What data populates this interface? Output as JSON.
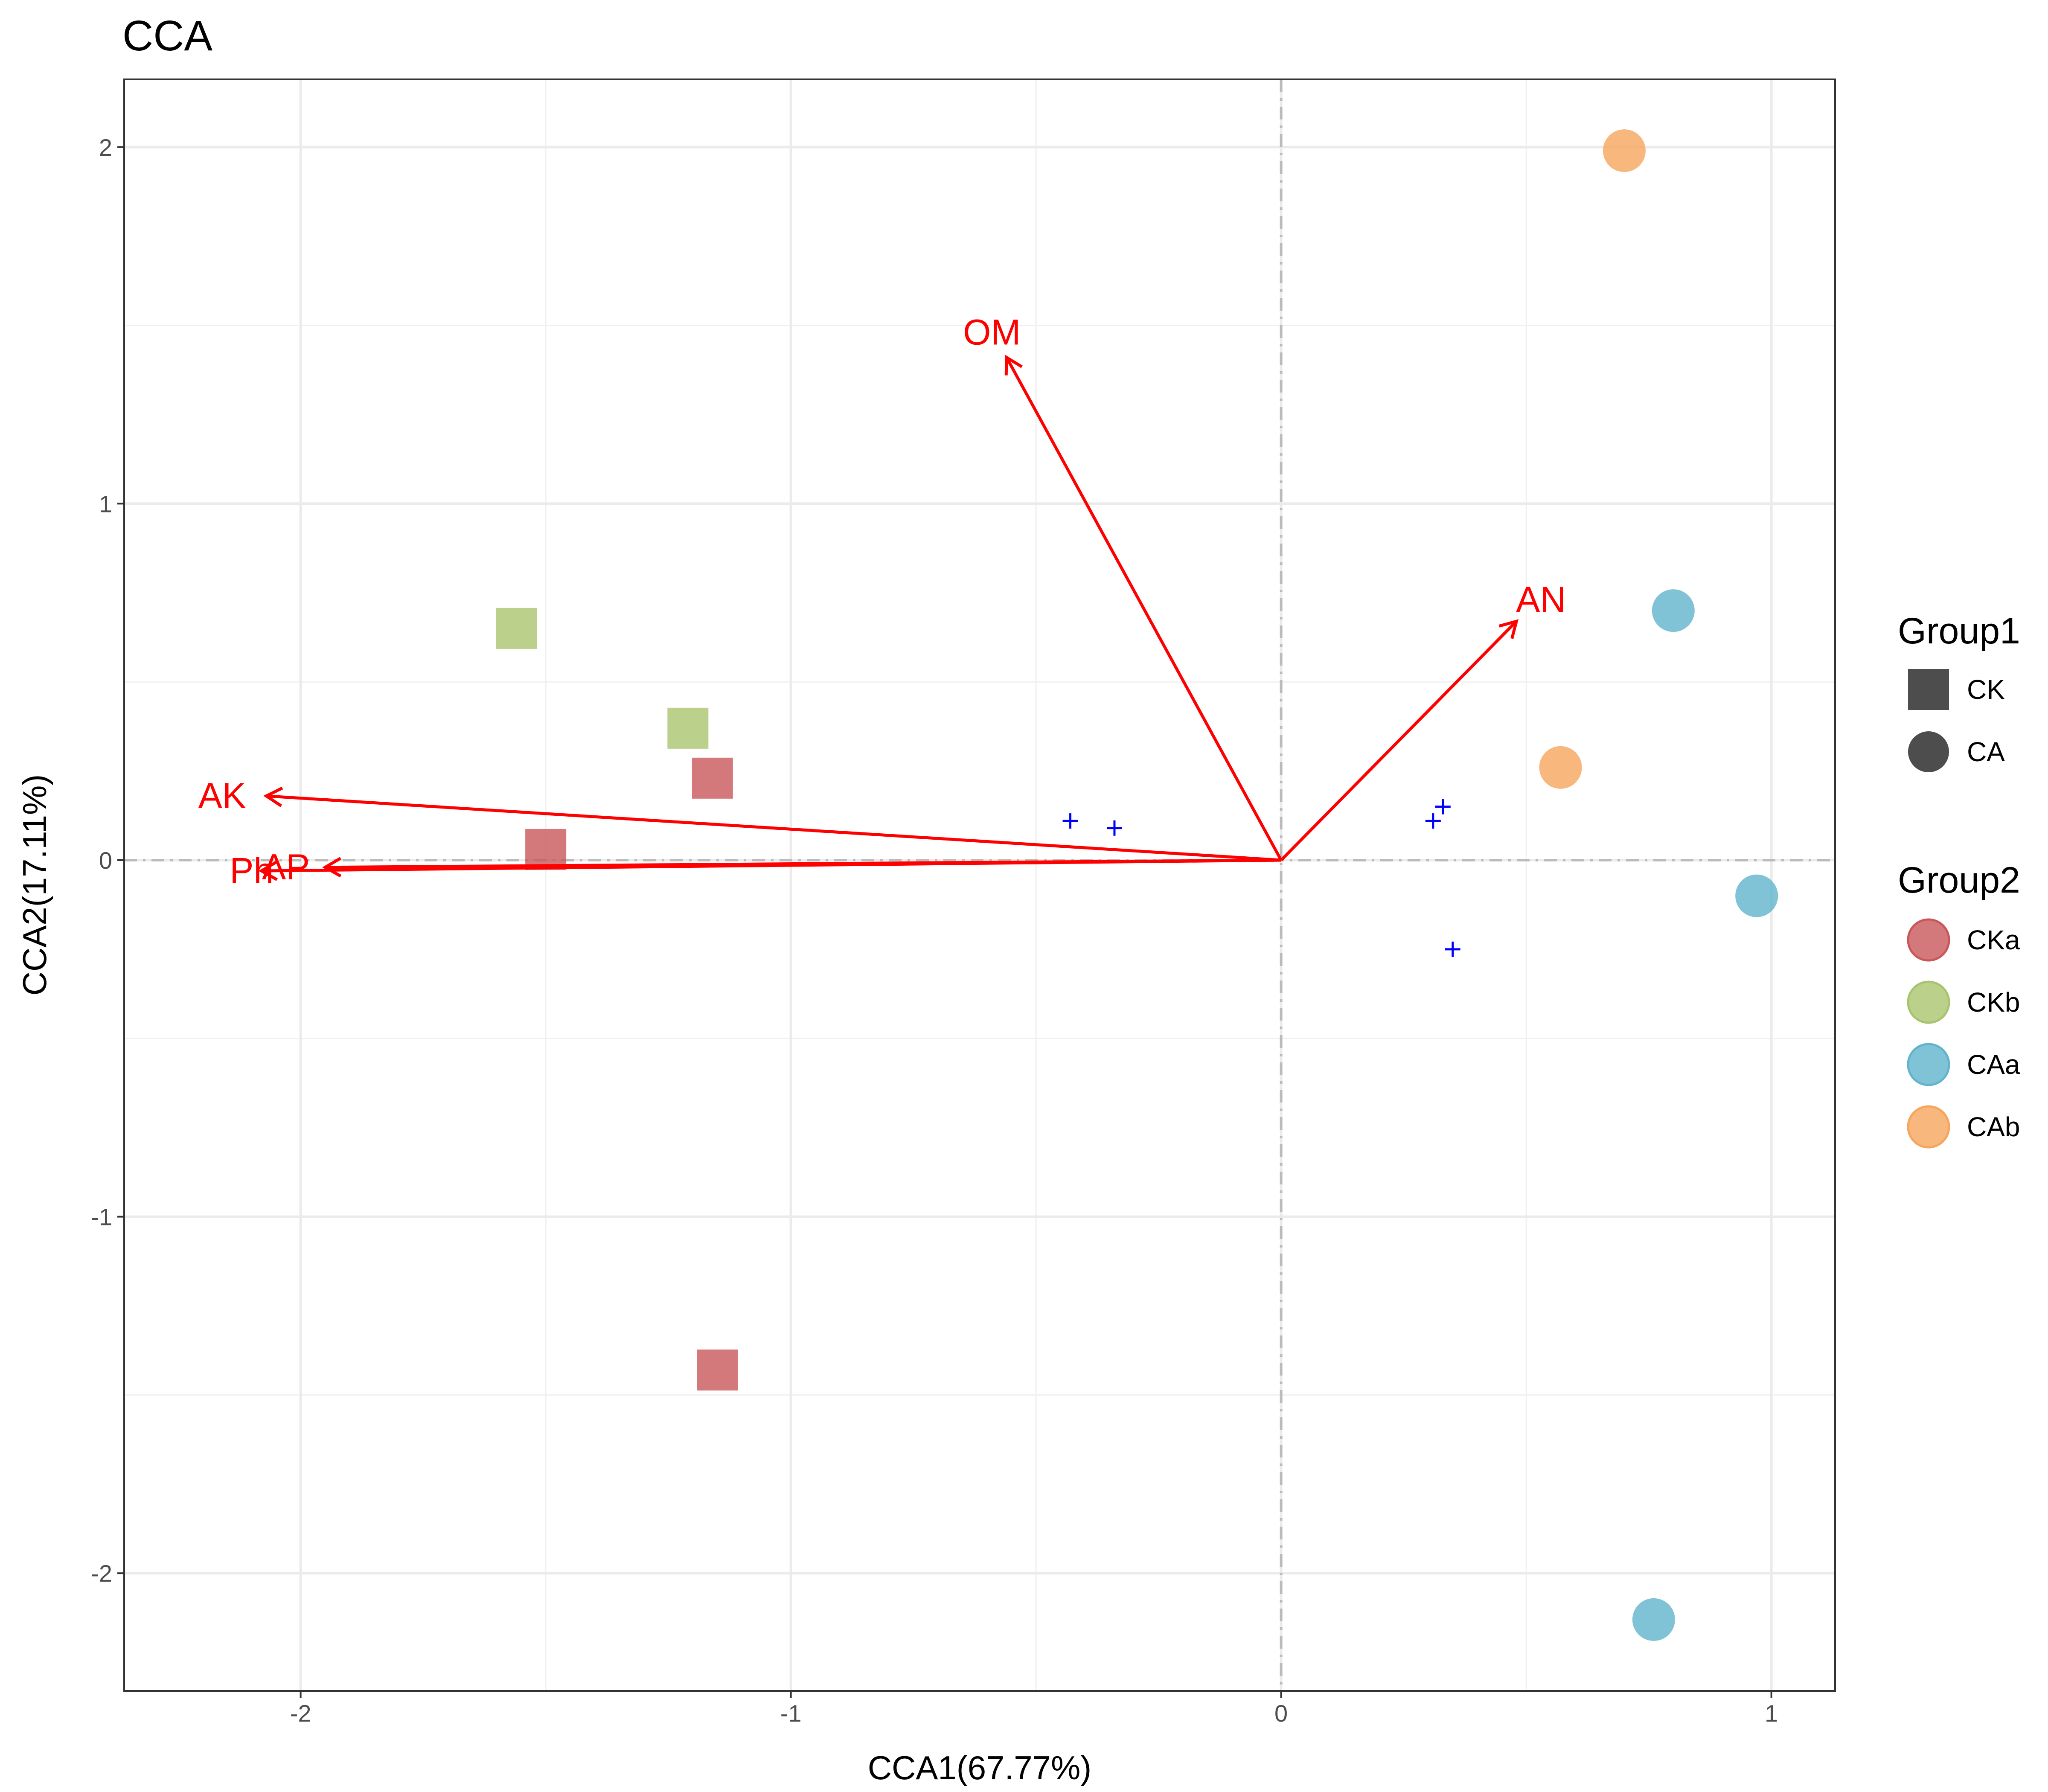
{
  "chart_data": {
    "type": "scatter",
    "title": "CCA",
    "xlabel": "CCA1(67.77%)",
    "ylabel": "CCA2(17.11%)",
    "xlim": [
      -2.36,
      1.13
    ],
    "ylim": [
      -2.33,
      2.19
    ],
    "xticks": [
      -2,
      -1,
      0,
      1
    ],
    "yticks": [
      -2,
      -1,
      0,
      1,
      2
    ],
    "xtick_labels": [
      "-2",
      "-1",
      "0",
      "1"
    ],
    "ytick_labels": [
      "-2",
      "-1",
      "0",
      "1",
      "2"
    ],
    "grid": true,
    "reference_lines": {
      "x": 0,
      "y": 0,
      "style": "dashed",
      "color": "#bbbbbb"
    },
    "points": [
      {
        "x": -1.16,
        "y": 0.23,
        "group1": "CK",
        "group2": "CKa"
      },
      {
        "x": -1.5,
        "y": 0.03,
        "group1": "CK",
        "group2": "CKa"
      },
      {
        "x": -1.15,
        "y": -1.43,
        "group1": "CK",
        "group2": "CKa"
      },
      {
        "x": -1.56,
        "y": 0.65,
        "group1": "CK",
        "group2": "CKb"
      },
      {
        "x": -1.21,
        "y": 0.37,
        "group1": "CK",
        "group2": "CKb"
      },
      {
        "x": 0.8,
        "y": 0.7,
        "group1": "CA",
        "group2": "CAa"
      },
      {
        "x": 0.97,
        "y": -0.1,
        "group1": "CA",
        "group2": "CAa"
      },
      {
        "x": 0.76,
        "y": -2.13,
        "group1": "CA",
        "group2": "CAa"
      },
      {
        "x": 0.7,
        "y": 1.99,
        "group1": "CA",
        "group2": "CAb"
      },
      {
        "x": 0.57,
        "y": 0.26,
        "group1": "CA",
        "group2": "CAb"
      }
    ],
    "species_points": [
      {
        "x": -0.43,
        "y": 0.11
      },
      {
        "x": -0.34,
        "y": 0.09
      },
      {
        "x": 0.31,
        "y": 0.11
      },
      {
        "x": 0.33,
        "y": 0.15
      },
      {
        "x": 0.35,
        "y": -0.25
      }
    ],
    "species_color": "#0000ff",
    "arrows": [
      {
        "name": "OM",
        "x": -0.56,
        "y": 1.41,
        "label_x": -0.59,
        "label_y": 1.48
      },
      {
        "name": "AN",
        "x": 0.48,
        "y": 0.67,
        "label_x": 0.53,
        "label_y": 0.73
      },
      {
        "name": "AK",
        "x": -2.07,
        "y": 0.18,
        "label_x": -2.16,
        "label_y": 0.18
      },
      {
        "name": "Ph",
        "x": -2.08,
        "y": -0.03,
        "label_x": -2.1,
        "label_y": -0.03
      },
      {
        "name": "AP",
        "x": -1.95,
        "y": -0.02,
        "label_x": -2.03,
        "label_y": -0.02
      }
    ],
    "arrow_color": "#ff0000",
    "legend": {
      "placement": "right",
      "group1": {
        "title": "Group1",
        "items": [
          {
            "label": "CK",
            "shape": "square"
          },
          {
            "label": "CA",
            "shape": "circle"
          }
        ]
      },
      "group2": {
        "title": "Group2",
        "items": [
          {
            "label": "CKa",
            "color": "#c9575a"
          },
          {
            "label": "CKb",
            "color": "#a9c46e"
          },
          {
            "label": "CAa",
            "color": "#62b4cc"
          },
          {
            "label": "CAb",
            "color": "#f6a55b"
          }
        ]
      }
    }
  }
}
